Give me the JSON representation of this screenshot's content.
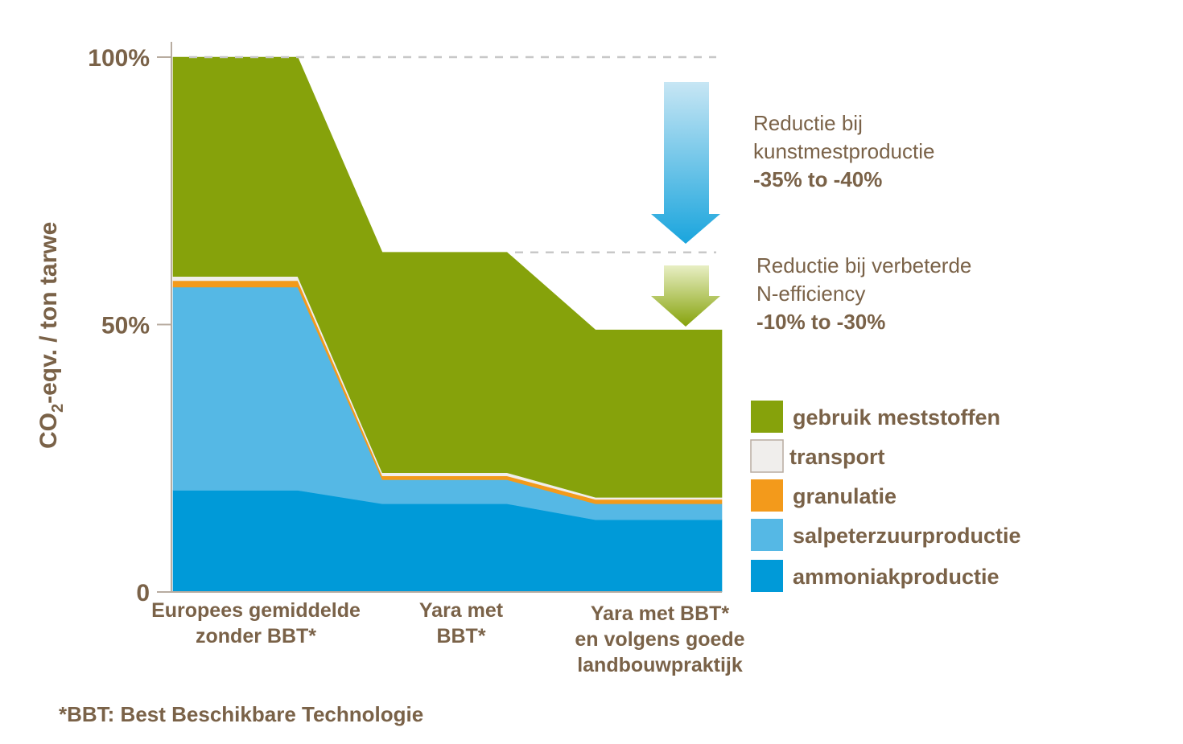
{
  "chart_data": {
    "type": "area",
    "ylabel_main": "CO",
    "ylabel_sub": "2",
    "ylabel_rest": "-eqv. / ton tarwe",
    "ylim": [
      0,
      100
    ],
    "y_ticks": [
      {
        "value": 0,
        "label": "0"
      },
      {
        "value": 50,
        "label": "50%"
      },
      {
        "value": 100,
        "label": "100%"
      }
    ],
    "categories": [
      {
        "lines": [
          "Europees gemiddelde",
          "zonder BBT*"
        ]
      },
      {
        "lines": [
          "Yara met",
          "BBT*"
        ]
      },
      {
        "lines": [
          "Yara met BBT*",
          "en volgens goede",
          "landbouwpraktijk"
        ]
      }
    ],
    "series": [
      {
        "name": "ammoniakproductie",
        "color": "#009ad8",
        "values": [
          19,
          16.5,
          13.5
        ]
      },
      {
        "name": "salpeterzuurproductie",
        "color": "#55b8e5",
        "values": [
          38,
          4.5,
          3
        ]
      },
      {
        "name": "granulatie",
        "color": "#f39a1b",
        "values": [
          1.2,
          0.7,
          0.8
        ]
      },
      {
        "name": "transport",
        "color": "#f0eeec",
        "values": [
          0.8,
          0.6,
          0.4
        ]
      },
      {
        "name": "gebruik meststoffen",
        "color": "#86a20b",
        "values": [
          41,
          41.2,
          31.3
        ]
      }
    ],
    "legend_order": [
      "gebruik meststoffen",
      "transport",
      "granulatie",
      "salpeterzuurproductie",
      "ammoniakproductie"
    ],
    "reference_lines": [
      100,
      63.5
    ],
    "annotations": [
      {
        "id": "kunstmest",
        "lines": [
          "Reductie bij",
          "kunstmestproductie"
        ],
        "bold": "-35% to -40%"
      },
      {
        "id": "n-efficiency",
        "lines": [
          "Reductie bij verbeterde",
          "N-efficiency"
        ],
        "bold": "-10% to -30%"
      }
    ],
    "footnote": "*BBT: Best Beschikbare Technologie",
    "grid": false,
    "legend_placement": "right",
    "colors": {
      "text": "#7a6248",
      "axis": "#b8aca0",
      "dash": "#c8c8c8",
      "arrow_blue_top": "#c7e6f4",
      "arrow_blue_bottom": "#1aa5dd",
      "arrow_green_top": "#e8efc4",
      "arrow_green_bottom": "#86a20b"
    }
  }
}
